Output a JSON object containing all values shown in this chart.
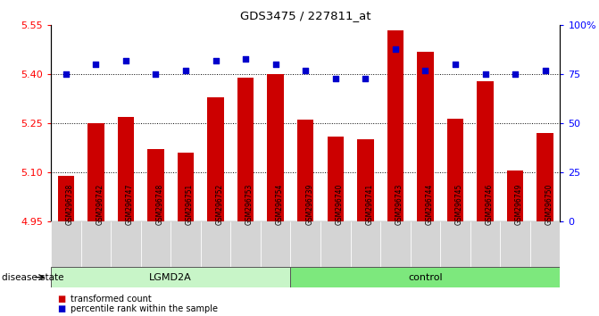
{
  "title": "GDS3475 / 227811_at",
  "samples": [
    "GSM296738",
    "GSM296742",
    "GSM296747",
    "GSM296748",
    "GSM296751",
    "GSM296752",
    "GSM296753",
    "GSM296754",
    "GSM296739",
    "GSM296740",
    "GSM296741",
    "GSM296743",
    "GSM296744",
    "GSM296745",
    "GSM296746",
    "GSM296749",
    "GSM296750"
  ],
  "transformed_count": [
    5.09,
    5.25,
    5.27,
    5.17,
    5.16,
    5.33,
    5.39,
    5.4,
    5.26,
    5.21,
    5.2,
    5.535,
    5.47,
    5.265,
    5.38,
    5.105,
    5.22
  ],
  "percentile_rank": [
    75,
    80,
    82,
    75,
    77,
    82,
    83,
    80,
    77,
    73,
    73,
    88,
    77,
    80,
    75,
    75,
    77
  ],
  "lgmd2a_count": 8,
  "control_count": 9,
  "ylim_left": [
    4.95,
    5.55
  ],
  "ylim_right": [
    0,
    100
  ],
  "yticks_left": [
    4.95,
    5.1,
    5.25,
    5.4,
    5.55
  ],
  "yticks_right": [
    0,
    25,
    50,
    75,
    100
  ],
  "ytick_labels_right": [
    "0",
    "25",
    "50",
    "75",
    "100%"
  ],
  "bar_color": "#cc0000",
  "dot_color": "#0000cc",
  "bg_color": "#ffffff",
  "tick_bg_color": "#d4d4d4",
  "lgmd2a_color": "#c8f5c8",
  "control_color": "#7de87d",
  "disease_state_label": "disease state",
  "legend_items": [
    "transformed count",
    "percentile rank within the sample"
  ],
  "legend_colors": [
    "#cc0000",
    "#0000cc"
  ],
  "grid_ticks": [
    5.1,
    5.25,
    5.4
  ]
}
